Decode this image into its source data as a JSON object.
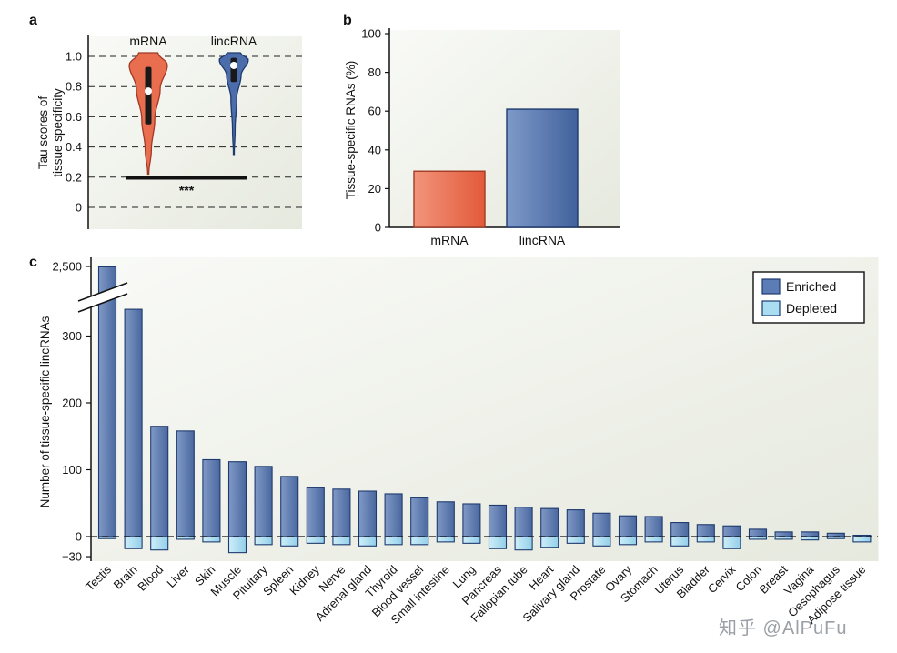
{
  "watermark": {
    "text": "知乎 @AlPuFu"
  },
  "chart_data": [
    {
      "panel_label": "a",
      "type": "violin",
      "ylabel": "Tau scores of tissue specificity",
      "ylabel_lines": [
        "Tau scores of",
        "tissue specificity"
      ],
      "ylim": [
        0,
        1.0
      ],
      "yticks": [
        0,
        0.2,
        0.4,
        0.6,
        0.8,
        1.0
      ],
      "grid": "dashed-horizontal",
      "significance": "***",
      "series": [
        {
          "name": "mRNA",
          "color": "#e96d4f",
          "stroke": "#a03a24",
          "min": 0.22,
          "max": 1.0,
          "q1": 0.55,
          "q3": 0.93,
          "median": 0.77
        },
        {
          "name": "lincRNA",
          "color": "#4c6dab",
          "stroke": "#1f3a6e",
          "min": 0.35,
          "max": 1.0,
          "q1": 0.83,
          "q3": 0.99,
          "median": 0.94
        }
      ]
    },
    {
      "panel_label": "b",
      "type": "bar",
      "ylabel": "Tissue-specific RNAs (%)",
      "ylim": [
        0,
        100
      ],
      "yticks": [
        0,
        20,
        40,
        60,
        80,
        100
      ],
      "categories": [
        "mRNA",
        "lincRNA"
      ],
      "values": [
        29,
        61
      ],
      "colors": [
        "#e96d4f",
        "#4c6dab"
      ],
      "strokes": [
        "#a03a24",
        "#1f3a6e"
      ]
    },
    {
      "panel_label": "c",
      "type": "bar",
      "ylabel": "Number of tissue-specific lincRNAs",
      "axis_break": true,
      "ytick_values": [
        2500,
        300,
        200,
        100,
        0,
        -30
      ],
      "ytick_labels": [
        "2,500",
        "300",
        "200",
        "100",
        "0",
        "−30"
      ],
      "legend_position": "top-right",
      "legend": [
        {
          "label": "Enriched",
          "color": "#5b7cb5"
        },
        {
          "label": "Depleted",
          "color": "#a9def2"
        }
      ],
      "categories": [
        "Testis",
        "Brain",
        "Blood",
        "Liver",
        "Skin",
        "Muscle",
        "Pituitary",
        "Spleen",
        "Kidney",
        "Nerve",
        "Adrenal gland",
        "Thyroid",
        "Blood vessel",
        "Small intestine",
        "Lung",
        "Pancreas",
        "Fallopian tube",
        "Heart",
        "Salivary gland",
        "Prostate",
        "Ovary",
        "Stomach",
        "Uterus",
        "Bladder",
        "Cervix",
        "Colon",
        "Breast",
        "Vagina",
        "Oesophagus",
        "Adipose tissue"
      ],
      "series": [
        {
          "name": "Enriched",
          "values": [
            2450,
            340,
            165,
            158,
            115,
            112,
            105,
            90,
            73,
            71,
            68,
            64,
            58,
            52,
            49,
            47,
            44,
            42,
            40,
            35,
            31,
            30,
            21,
            18,
            16,
            11,
            7,
            7,
            5,
            2
          ]
        },
        {
          "name": "Depleted",
          "values": [
            -3,
            -18,
            -20,
            -4,
            -8,
            -24,
            -12,
            -14,
            -10,
            -12,
            -14,
            -12,
            -12,
            -8,
            -10,
            -18,
            -20,
            -16,
            -10,
            -14,
            -12,
            -8,
            -14,
            -8,
            -18,
            -4,
            -4,
            -5,
            -3,
            -8
          ]
        }
      ]
    }
  ]
}
